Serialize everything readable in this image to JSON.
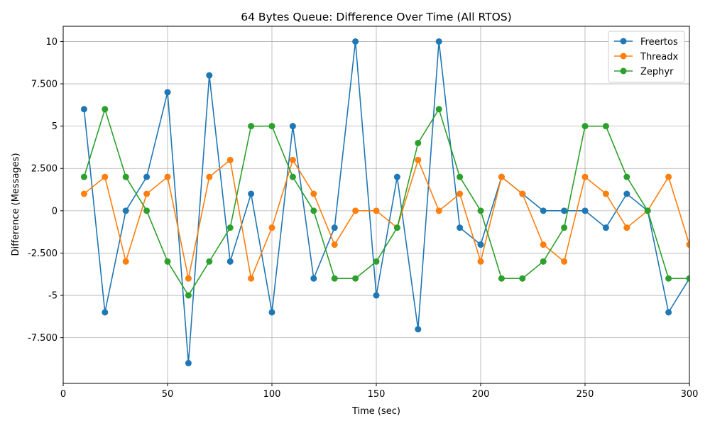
{
  "chart_data": {
    "type": "line",
    "title": "64 Bytes Queue: Difference Over Time (All RTOS)",
    "xlabel": "Time (sec)",
    "ylabel": "Difference (Messages)",
    "xlim": [
      0,
      300
    ],
    "ylim": [
      -10.2,
      10.9
    ],
    "grid": true,
    "legend_position": "top-right",
    "x_ticks": [
      0,
      50,
      100,
      150,
      200,
      250,
      300
    ],
    "x_tick_labels": [
      "0",
      "50",
      "100",
      "150",
      "200",
      "250",
      "300"
    ],
    "y_ticks": [
      10,
      7.5,
      5,
      2.5,
      0,
      -2.5,
      -5,
      -7.5
    ],
    "y_tick_labels": [
      "10",
      "7.500",
      "5",
      "2.500",
      "0",
      "-2.500",
      "-5",
      "-7.500"
    ],
    "x": [
      10,
      20,
      30,
      40,
      50,
      60,
      70,
      80,
      90,
      100,
      110,
      120,
      130,
      140,
      150,
      160,
      170,
      180,
      190,
      200,
      210,
      220,
      230,
      240,
      250,
      260,
      270,
      280,
      290,
      300
    ],
    "series": [
      {
        "name": "Freertos",
        "color": "#1f77b4",
        "values": [
          6,
          -6,
          0,
          2,
          7,
          -9,
          8,
          -3,
          1,
          -6,
          5,
          -4,
          -1,
          10,
          -5,
          2,
          -7,
          10,
          -1,
          -2,
          2,
          1,
          0,
          0,
          0,
          -1,
          1,
          0,
          -6,
          -4
        ]
      },
      {
        "name": "Threadx",
        "color": "#ff7f0e",
        "values": [
          1,
          2,
          -3,
          1,
          2,
          -4,
          2,
          3,
          -4,
          -1,
          3,
          1,
          -2,
          0,
          0,
          -1,
          3,
          0,
          1,
          -3,
          2,
          1,
          -2,
          -3,
          2,
          1,
          -1,
          0,
          2,
          -2
        ]
      },
      {
        "name": "Zephyr",
        "color": "#2ca02c",
        "values": [
          2,
          6,
          2,
          0,
          -3,
          -5,
          -3,
          -1,
          5,
          5,
          2,
          0,
          -4,
          -4,
          -3,
          -1,
          4,
          6,
          2,
          0,
          -4,
          -4,
          -3,
          -1,
          5,
          5,
          2,
          0,
          -4,
          -4
        ]
      }
    ]
  }
}
